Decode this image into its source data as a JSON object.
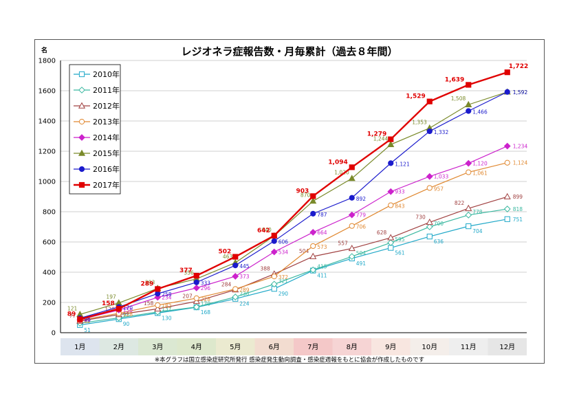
{
  "chart_data": {
    "type": "line",
    "title": "レジオネラ症報告数・月毎累計（過去８年間）",
    "ylabel": "名",
    "ylim": [
      0,
      1800
    ],
    "yticks": [
      0,
      200,
      400,
      600,
      800,
      1000,
      1200,
      1400,
      1600,
      1800
    ],
    "grid": true,
    "legend_position": "top-left",
    "categories": [
      "1月",
      "2月",
      "3月",
      "4月",
      "5月",
      "6月",
      "7月",
      "8月",
      "9月",
      "10月",
      "11月",
      "12月"
    ],
    "series": [
      {
        "name": "2010年",
        "color": "#1fa8c8",
        "marker": "square-open",
        "values": [
          51,
          90,
          130,
          168,
          224,
          290,
          411,
          491,
          561,
          636,
          704,
          751
        ],
        "labels": [
          "51",
          "90",
          "130",
          "168",
          "224",
          "290",
          "411",
          "491",
          "561",
          "636",
          "704",
          "751"
        ]
      },
      {
        "name": "2011年",
        "color": "#3ab8a0",
        "marker": "diamond-open",
        "values": [
          63,
          98,
          137,
          170,
          236,
          321,
          415,
          504,
          595,
          700,
          778,
          818
        ],
        "labels": [
          "63",
          "98",
          "137",
          "170",
          "236",
          "321",
          "415",
          "504",
          "595",
          "700",
          "778",
          "818"
        ]
      },
      {
        "name": "2012年",
        "color": "#a04040",
        "marker": "triangle-open",
        "values": [
          77,
          120,
          158,
          207,
          284,
          388,
          504,
          557,
          628,
          730,
          822,
          899
        ],
        "labels": [
          "77",
          "120",
          "158",
          "207",
          "284",
          "388",
          "504",
          "557",
          "628",
          "730",
          "822",
          "899"
        ]
      },
      {
        "name": "2013年",
        "color": "#e08830",
        "marker": "circle-open",
        "values": [
          82,
          128,
          182,
          228,
          289,
          372,
          573,
          706,
          843,
          957,
          1061,
          1124
        ],
        "labels": [
          "82",
          "128",
          "182",
          "228",
          "289",
          "372",
          "573",
          "706",
          "843",
          "957",
          "1,061",
          "1,124"
        ]
      },
      {
        "name": "2014年",
        "color": "#cc22cc",
        "marker": "diamond",
        "values": [
          86,
          150,
          234,
          296,
          373,
          534,
          664,
          779,
          933,
          1033,
          1120,
          1234
        ],
        "labels": [
          "86",
          "150",
          "234",
          "296",
          "373",
          "534",
          "664",
          "779",
          "933",
          "1,033",
          "1,120",
          "1,234"
        ]
      },
      {
        "name": "2015年",
        "color": "#7a8a2a",
        "marker": "triangle",
        "values": [
          121,
          197,
          293,
          356,
          463,
          640,
          870,
          1020,
          1244,
          1353,
          1508,
          1592
        ],
        "labels": [
          "121",
          "197",
          "293",
          "356",
          "463",
          "640",
          "870",
          "1,020",
          "1,244",
          "1,353",
          "1,508",
          "1,592"
        ]
      },
      {
        "name": "2016年",
        "color": "#1a1acc",
        "marker": "circle",
        "values": [
          96,
          170,
          258,
          333,
          445,
          606,
          787,
          892,
          1121,
          1332,
          1466,
          1592
        ],
        "labels": [
          "96",
          "170",
          "258",
          "333",
          "445",
          "606",
          "787",
          "892",
          "1,121",
          "1,332",
          "1,466",
          "1,592"
        ]
      },
      {
        "name": "2017年",
        "color": "#e00000",
        "marker": "square",
        "values": [
          89,
          158,
          289,
          377,
          502,
          642,
          903,
          1094,
          1279,
          1529,
          1639,
          1722
        ],
        "labels": [
          "89",
          "158",
          "289",
          "377",
          "502",
          "642",
          "903",
          "1,094",
          "1,279",
          "1,529",
          "1,639",
          "1,722"
        ]
      }
    ],
    "month_band_colors": [
      "#dde4ee",
      "#dde8e2",
      "#dbe8d2",
      "#dde8cc",
      "#ebead0",
      "#f2dcd0",
      "#f4c8c8",
      "#f6d4d4",
      "#f8e6e0",
      "#f4eeea",
      "#eeeeee",
      "#e6e6e6"
    ]
  },
  "footnote": "※本グラフは国立感染症研究所発行 感染症発生動向調査・感染症週報をもとに協会が作成したものです"
}
